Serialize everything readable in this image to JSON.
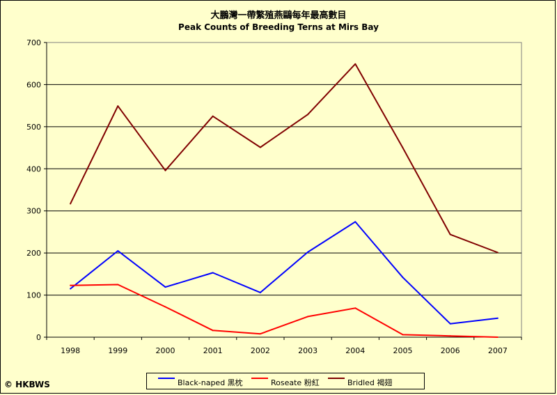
{
  "chart_data": {
    "type": "line",
    "title": "大鵬灣一帶繁殖燕鷗每年最高數目",
    "subtitle": "Peak Counts of Breeding Terns at Mirs Bay",
    "xlabel": "",
    "ylabel": "",
    "x": [
      "1998",
      "1999",
      "2000",
      "2001",
      "2002",
      "2003",
      "2004",
      "2005",
      "2006",
      "2007"
    ],
    "ylim": [
      0,
      700
    ],
    "yticks": [
      0,
      100,
      200,
      300,
      400,
      500,
      600,
      700
    ],
    "grid": "horizontal",
    "legend_position": "bottom",
    "series": [
      {
        "name": "Black-naped 黑枕",
        "color": "#0000ff",
        "values": [
          115,
          205,
          119,
          153,
          106,
          202,
          274,
          142,
          32,
          45
        ]
      },
      {
        "name": "Roseate 粉紅",
        "color": "#ff0000",
        "values": [
          123,
          125,
          72,
          16,
          8,
          49,
          69,
          6,
          3,
          0
        ]
      },
      {
        "name": "Bridled 褐翅",
        "color": "#800000",
        "values": [
          317,
          549,
          396,
          525,
          451,
          529,
          649,
          450,
          244,
          201
        ]
      }
    ]
  },
  "copyright": "© HKBWS"
}
